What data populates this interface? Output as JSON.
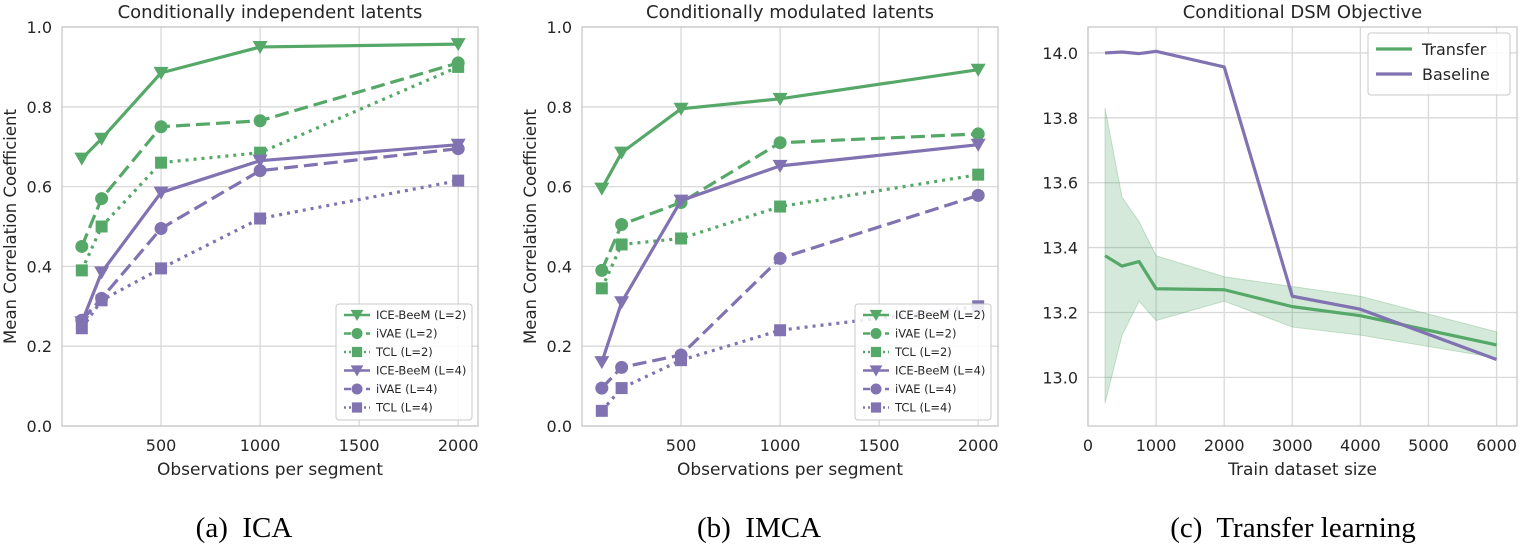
{
  "colors": {
    "green": "#55a868",
    "purple": "#8172b2",
    "grid": "#d9d9d9",
    "frame": "#c8c8c8",
    "text": "#262626"
  },
  "captions": [
    "(a)  ICA",
    "(b)  IMCA",
    "(c)  Transfer learning"
  ],
  "chart_data": [
    {
      "type": "line",
      "title": "Conditionally independent latents",
      "xlabel": "Observations per segment",
      "ylabel": "Mean Correlation Coefficient",
      "xlim": [
        0,
        2100
      ],
      "ylim": [
        0,
        1.0
      ],
      "xticks": [
        500,
        1000,
        1500,
        2000
      ],
      "xtick_labels": [
        "500",
        "1000",
        "1500",
        "2000"
      ],
      "yticks": [
        0,
        0.2,
        0.4,
        0.6,
        0.8,
        1.0
      ],
      "ytick_labels": [
        "0.0",
        "0.2",
        "0.4",
        "0.6",
        "0.8",
        "1.0"
      ],
      "grid": true,
      "legend": "lower-right",
      "x": [
        100,
        200,
        500,
        1000,
        2000
      ],
      "series": [
        {
          "name": "ICE-BeeM (L=2)",
          "color": "green",
          "line": "solid",
          "marker": "triangle-down",
          "values": [
            0.67,
            0.72,
            0.885,
            0.95,
            0.957
          ]
        },
        {
          "name": "iVAE (L=2)",
          "color": "green",
          "line": "dashed",
          "marker": "circle",
          "values": [
            0.45,
            0.57,
            0.75,
            0.765,
            0.91
          ]
        },
        {
          "name": "TCL (L=2)",
          "color": "green",
          "line": "dotted",
          "marker": "square",
          "values": [
            0.39,
            0.5,
            0.66,
            0.685,
            0.9
          ]
        },
        {
          "name": "ICE-BeeM (L=4)",
          "color": "purple",
          "line": "solid",
          "marker": "triangle-down",
          "values": [
            0.26,
            0.385,
            0.585,
            0.665,
            0.705
          ]
        },
        {
          "name": "iVAE (L=4)",
          "color": "purple",
          "line": "dashed",
          "marker": "circle",
          "values": [
            0.265,
            0.32,
            0.495,
            0.64,
            0.695
          ]
        },
        {
          "name": "TCL (L=4)",
          "color": "purple",
          "line": "dotted",
          "marker": "square",
          "values": [
            0.245,
            0.315,
            0.395,
            0.52,
            0.615
          ]
        }
      ]
    },
    {
      "type": "line",
      "title": "Conditionally modulated latents",
      "xlabel": "Observations per segment",
      "ylabel": "Mean Correlation Coefficient",
      "xlim": [
        0,
        2100
      ],
      "ylim": [
        0,
        1.0
      ],
      "xticks": [
        500,
        1000,
        1500,
        2000
      ],
      "xtick_labels": [
        "500",
        "1000",
        "1500",
        "2000"
      ],
      "yticks": [
        0,
        0.2,
        0.4,
        0.6,
        0.8,
        1.0
      ],
      "ytick_labels": [
        "0.0",
        "0.2",
        "0.4",
        "0.6",
        "0.8",
        "1.0"
      ],
      "grid": true,
      "legend": "lower-right",
      "x": [
        100,
        200,
        500,
        1000,
        2000
      ],
      "series": [
        {
          "name": "ICE-BeeM (L=2)",
          "color": "green",
          "line": "solid",
          "marker": "triangle-down",
          "values": [
            0.595,
            0.685,
            0.795,
            0.82,
            0.893
          ]
        },
        {
          "name": "iVAE (L=2)",
          "color": "green",
          "line": "dashed",
          "marker": "circle",
          "values": [
            0.39,
            0.505,
            0.56,
            0.71,
            0.732
          ]
        },
        {
          "name": "TCL (L=2)",
          "color": "green",
          "line": "dotted",
          "marker": "square",
          "values": [
            0.345,
            0.455,
            0.47,
            0.55,
            0.63
          ]
        },
        {
          "name": "ICE-BeeM (L=4)",
          "color": "purple",
          "line": "solid",
          "marker": "triangle-down",
          "values": [
            0.16,
            0.31,
            0.565,
            0.652,
            0.705
          ]
        },
        {
          "name": "iVAE (L=4)",
          "color": "purple",
          "line": "dashed",
          "marker": "circle",
          "values": [
            0.095,
            0.147,
            0.178,
            0.42,
            0.578
          ]
        },
        {
          "name": "TCL (L=4)",
          "color": "purple",
          "line": "dotted",
          "marker": "square",
          "values": [
            0.038,
            0.095,
            0.165,
            0.24,
            0.3
          ]
        }
      ]
    },
    {
      "type": "line",
      "title": "Conditional DSM Objective",
      "xlabel": "Train dataset size",
      "ylabel": "",
      "xlim": [
        0,
        6300
      ],
      "ylim": [
        12.85,
        14.08
      ],
      "xticks": [
        0,
        1000,
        2000,
        3000,
        4000,
        5000,
        6000
      ],
      "xtick_labels": [
        "0",
        "1000",
        "2000",
        "3000",
        "4000",
        "5000",
        "6000"
      ],
      "yticks": [
        13.0,
        13.2,
        13.4,
        13.6,
        13.8,
        14.0
      ],
      "ytick_labels": [
        "13.0",
        "13.2",
        "13.4",
        "13.6",
        "13.8",
        "14.0"
      ],
      "grid": true,
      "legend": "top-right",
      "series": [
        {
          "name": "Transfer",
          "color": "green",
          "line": "solid",
          "x": [
            250,
            500,
            750,
            1000,
            2000,
            3000,
            4000,
            6000
          ],
          "values": [
            13.375,
            13.343,
            13.357,
            13.273,
            13.27,
            13.218,
            13.19,
            13.1
          ],
          "band_upper": [
            13.83,
            13.555,
            13.48,
            13.375,
            13.31,
            13.28,
            13.25,
            13.14
          ],
          "band_lower": [
            12.92,
            13.13,
            13.235,
            13.175,
            13.235,
            13.155,
            13.13,
            13.06
          ]
        },
        {
          "name": "Baseline",
          "color": "purple",
          "line": "solid",
          "x": [
            250,
            500,
            750,
            1000,
            2000,
            3000,
            4000,
            6000
          ],
          "values": [
            14.0,
            14.003,
            13.998,
            14.005,
            13.957,
            13.25,
            13.21,
            13.055
          ]
        }
      ]
    }
  ]
}
